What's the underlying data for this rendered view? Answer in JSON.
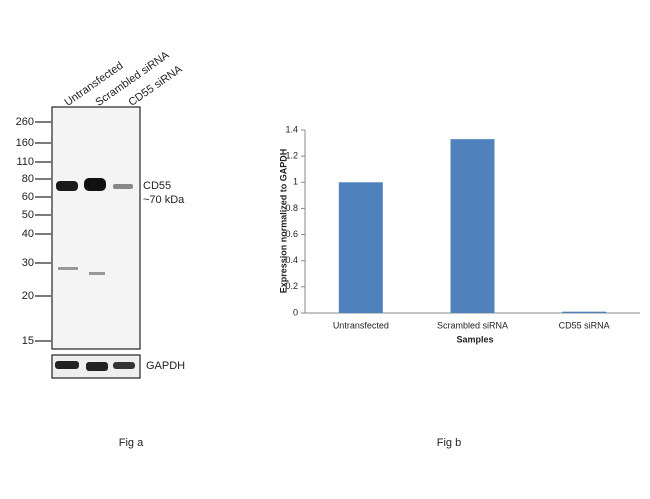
{
  "blot": {
    "lanes": [
      "Untransfected",
      "Scrambled siRNA",
      "CD55 siRNA"
    ],
    "markers": [
      260,
      160,
      110,
      80,
      60,
      50,
      40,
      30,
      20,
      15
    ],
    "band_label": "CD55",
    "band_size": "~70 kDa",
    "loading_control": "GAPDH"
  },
  "chart_data": {
    "type": "bar",
    "categories": [
      "Untransfected",
      "Scrambled siRNA",
      "CD55 siRNA"
    ],
    "values": [
      1,
      1.33,
      0.01
    ],
    "color": "#4f81bd",
    "ylim": [
      0,
      1.4
    ],
    "yticks": [
      0,
      0.2,
      0.4,
      0.6,
      0.8,
      1,
      1.2,
      1.4
    ],
    "ylabel": "Expression normalized to GAPDH",
    "xlabel": "Samples",
    "grid": false
  },
  "captions": [
    "Fig a",
    "Fig b"
  ]
}
